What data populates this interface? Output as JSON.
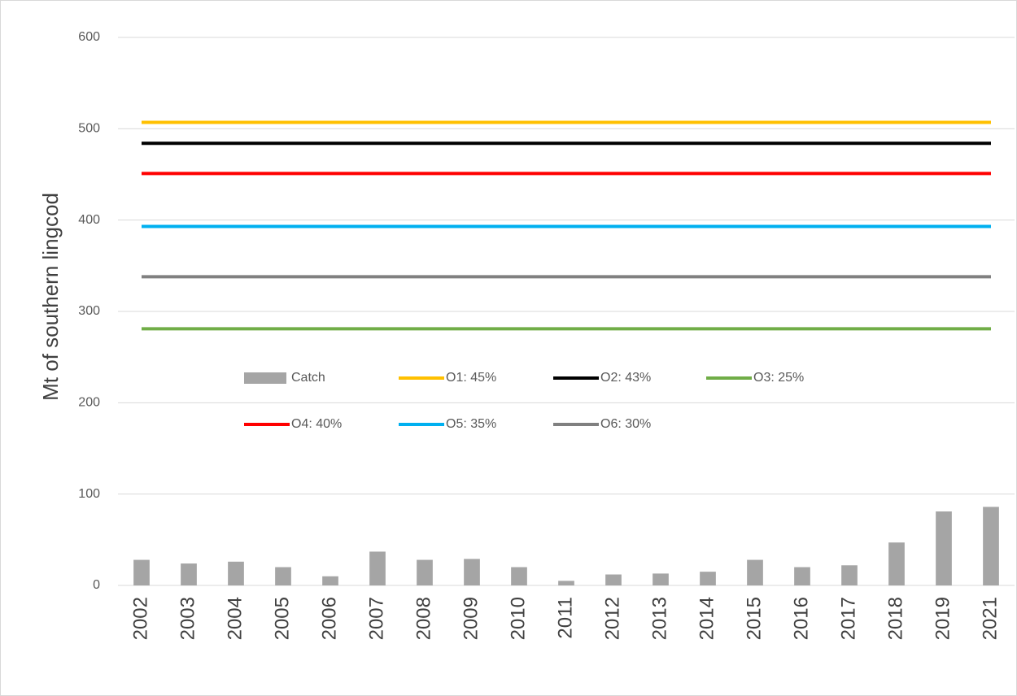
{
  "chart_data": {
    "type": "bar",
    "ylabel": "Mt of southern lingcod",
    "categories": [
      "2002",
      "2003",
      "2004",
      "2005",
      "2006",
      "2007",
      "2008",
      "2009",
      "2010",
      "2011",
      "2012",
      "2013",
      "2014",
      "2015",
      "2016",
      "2017",
      "2018",
      "2019",
      "2021"
    ],
    "ylim": [
      0,
      600
    ],
    "yticks": [
      0,
      100,
      200,
      300,
      400,
      500,
      600
    ],
    "grid": true,
    "series": [
      {
        "name": "Catch",
        "type": "bar",
        "color": "#a5a5a5",
        "values": [
          28,
          24,
          26,
          20,
          10,
          37,
          28,
          29,
          20,
          5,
          12,
          13,
          15,
          28,
          20,
          22,
          47,
          81,
          86
        ]
      },
      {
        "name": "O1: 45%",
        "type": "line",
        "color": "#ffc000",
        "values": [
          507,
          507,
          507,
          507,
          507,
          507,
          507,
          507,
          507,
          507,
          507,
          507,
          507,
          507,
          507,
          507,
          507,
          507,
          507
        ]
      },
      {
        "name": "O2: 43%",
        "type": "line",
        "color": "#000000",
        "values": [
          484,
          484,
          484,
          484,
          484,
          484,
          484,
          484,
          484,
          484,
          484,
          484,
          484,
          484,
          484,
          484,
          484,
          484,
          484
        ]
      },
      {
        "name": "O3: 25%",
        "type": "line",
        "color": "#70ad47",
        "values": [
          281,
          281,
          281,
          281,
          281,
          281,
          281,
          281,
          281,
          281,
          281,
          281,
          281,
          281,
          281,
          281,
          281,
          281,
          281
        ]
      },
      {
        "name": "O4: 40%",
        "type": "line",
        "color": "#ff0000",
        "values": [
          451,
          451,
          451,
          451,
          451,
          451,
          451,
          451,
          451,
          451,
          451,
          451,
          451,
          451,
          451,
          451,
          451,
          451,
          451
        ]
      },
      {
        "name": "O5: 35%",
        "type": "line",
        "color": "#00b0f0",
        "values": [
          393,
          393,
          393,
          393,
          393,
          393,
          393,
          393,
          393,
          393,
          393,
          393,
          393,
          393,
          393,
          393,
          393,
          393,
          393
        ]
      },
      {
        "name": "O6: 30%",
        "type": "line",
        "color": "#808080",
        "values": [
          338,
          338,
          338,
          338,
          338,
          338,
          338,
          338,
          338,
          338,
          338,
          338,
          338,
          338,
          338,
          338,
          338,
          338,
          338
        ]
      }
    ]
  }
}
